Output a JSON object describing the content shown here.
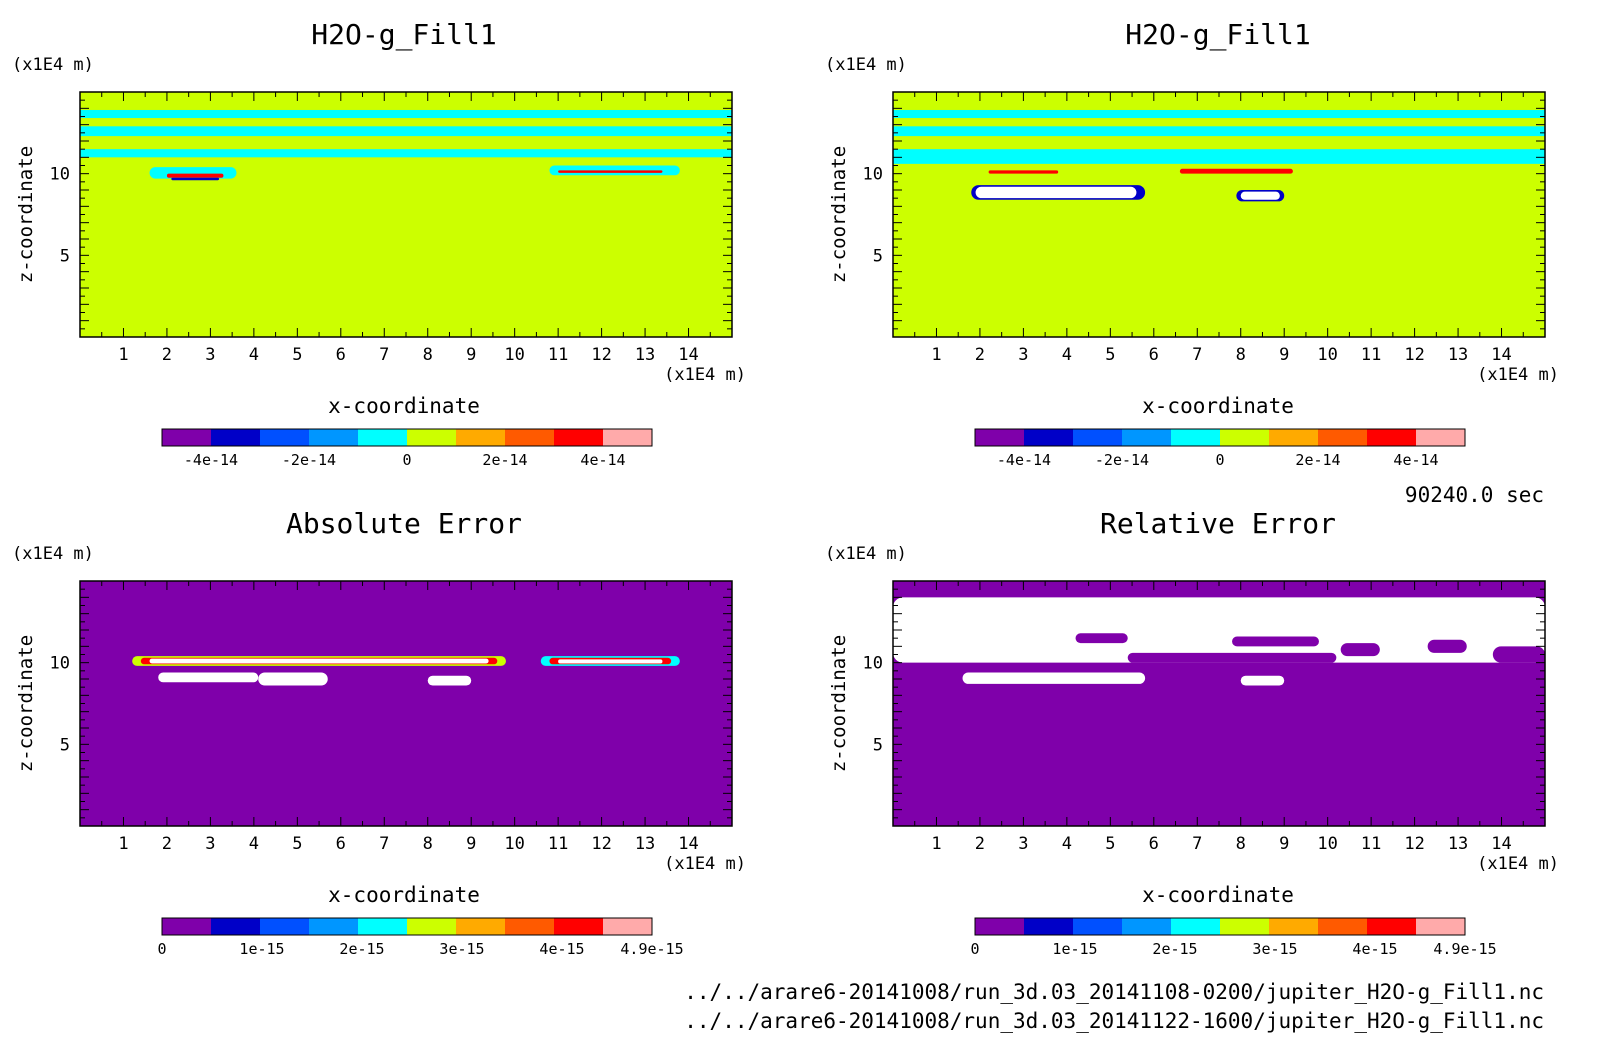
{
  "time_label": "90240.0 sec",
  "file_paths": [
    "../../arare6-20141008/run_3d.03_20141108-0200/jupiter_H2O-g_Fill1.nc",
    "../../arare6-20141008/run_3d.03_20141122-1600/jupiter_H2O-g_Fill1.nc"
  ],
  "colors": {
    "levels": [
      "#7f00aa",
      "#0000c8",
      "#0050ff",
      "#0096ff",
      "#00ffff",
      "#ccff00",
      "#ffaa00",
      "#ff5a00",
      "#ff0000",
      "#ffaaaa"
    ],
    "missing": "#ffffff"
  },
  "chart_data": [
    {
      "type": "heatmap",
      "title": "H2O-g_Fill1",
      "xlabel": "x-coordinate",
      "ylabel": "z-coordinate",
      "x_unit": "(x1E4 m)",
      "y_unit": "(x1E4 m)",
      "xlim": [
        0,
        15
      ],
      "ylim": [
        0,
        15
      ],
      "x_ticks": [
        "1",
        "2",
        "3",
        "4",
        "5",
        "6",
        "7",
        "8",
        "9",
        "10",
        "11",
        "12",
        "13",
        "14"
      ],
      "y_ticks": [
        "5",
        "10"
      ],
      "background_level": 5,
      "features": [
        {
          "kind": "band",
          "z": [
            14.0,
            14.6
          ],
          "level": 5
        },
        {
          "kind": "band",
          "z": [
            13.4,
            13.9
          ],
          "level": 4
        },
        {
          "kind": "band",
          "z": [
            13.0,
            13.4
          ],
          "level": 5
        },
        {
          "kind": "band",
          "z": [
            12.3,
            12.9
          ],
          "level": 4
        },
        {
          "kind": "band",
          "z": [
            11.6,
            12.2
          ],
          "level": 5
        },
        {
          "kind": "band",
          "z": [
            11.0,
            11.5
          ],
          "level": 4
        },
        {
          "kind": "patch",
          "x": [
            1.6,
            3.6
          ],
          "z": [
            9.7,
            10.4
          ],
          "level": 4
        },
        {
          "kind": "patch",
          "x": [
            2.0,
            3.3
          ],
          "z": [
            9.75,
            10.0
          ],
          "level": 8
        },
        {
          "kind": "patch",
          "x": [
            2.1,
            3.2
          ],
          "z": [
            9.6,
            9.75
          ],
          "level": 1
        },
        {
          "kind": "patch",
          "x": [
            10.8,
            13.8
          ],
          "z": [
            9.9,
            10.5
          ],
          "level": 4
        },
        {
          "kind": "patch",
          "x": [
            11.0,
            13.4
          ],
          "z": [
            10.05,
            10.2
          ],
          "level": 8
        }
      ],
      "colorbar": {
        "ticks": [
          "-4e-14",
          "-2e-14",
          "0",
          "2e-14",
          "4e-14"
        ],
        "range": [
          -5e-14,
          5e-14
        ]
      }
    },
    {
      "type": "heatmap",
      "title": "H2O-g_Fill1",
      "xlabel": "x-coordinate",
      "ylabel": "z-coordinate",
      "x_unit": "(x1E4 m)",
      "y_unit": "(x1E4 m)",
      "xlim": [
        0,
        15
      ],
      "ylim": [
        0,
        15
      ],
      "x_ticks": [
        "1",
        "2",
        "3",
        "4",
        "5",
        "6",
        "7",
        "8",
        "9",
        "10",
        "11",
        "12",
        "13",
        "14"
      ],
      "y_ticks": [
        "5",
        "10"
      ],
      "background_level": 5,
      "features": [
        {
          "kind": "band",
          "z": [
            14.0,
            14.6
          ],
          "level": 5
        },
        {
          "kind": "band",
          "z": [
            13.4,
            13.9
          ],
          "level": 4
        },
        {
          "kind": "band",
          "z": [
            13.0,
            13.4
          ],
          "level": 5
        },
        {
          "kind": "band",
          "z": [
            12.3,
            12.9
          ],
          "level": 4
        },
        {
          "kind": "band",
          "z": [
            11.6,
            12.2
          ],
          "level": 5
        },
        {
          "kind": "band",
          "z": [
            10.6,
            11.5
          ],
          "level": 4
        },
        {
          "kind": "patch",
          "x": [
            2.2,
            3.8
          ],
          "z": [
            10.0,
            10.2
          ],
          "level": 8
        },
        {
          "kind": "patch",
          "x": [
            6.6,
            9.2
          ],
          "z": [
            10.0,
            10.3
          ],
          "level": 8
        },
        {
          "kind": "patch",
          "x": [
            1.8,
            5.8
          ],
          "z": [
            8.4,
            9.3
          ],
          "level": 1
        },
        {
          "kind": "patch",
          "x": [
            1.9,
            5.6
          ],
          "z": [
            8.5,
            9.2
          ],
          "level": "missing"
        },
        {
          "kind": "patch",
          "x": [
            7.9,
            9.0
          ],
          "z": [
            8.3,
            9.0
          ],
          "level": 1
        },
        {
          "kind": "patch",
          "x": [
            8.0,
            8.9
          ],
          "z": [
            8.4,
            8.9
          ],
          "level": "missing"
        }
      ],
      "colorbar": {
        "ticks": [
          "-4e-14",
          "-2e-14",
          "0",
          "2e-14",
          "4e-14"
        ],
        "range": [
          -5e-14,
          5e-14
        ]
      }
    },
    {
      "type": "heatmap",
      "title": "Absolute Error",
      "xlabel": "x-coordinate",
      "ylabel": "z-coordinate",
      "x_unit": "(x1E4 m)",
      "y_unit": "(x1E4 m)",
      "xlim": [
        0,
        15
      ],
      "ylim": [
        0,
        15
      ],
      "x_ticks": [
        "1",
        "2",
        "3",
        "4",
        "5",
        "6",
        "7",
        "8",
        "9",
        "10",
        "11",
        "12",
        "13",
        "14"
      ],
      "y_ticks": [
        "5",
        "10"
      ],
      "background_level": 0,
      "features": [
        {
          "kind": "patch",
          "x": [
            1.2,
            9.8
          ],
          "z": [
            9.8,
            10.4
          ],
          "level": 5
        },
        {
          "kind": "patch",
          "x": [
            1.4,
            9.6
          ],
          "z": [
            9.9,
            10.3
          ],
          "level": 8
        },
        {
          "kind": "patch",
          "x": [
            1.6,
            9.4
          ],
          "z": [
            9.95,
            10.25
          ],
          "level": "missing"
        },
        {
          "kind": "patch",
          "x": [
            10.6,
            13.8
          ],
          "z": [
            9.8,
            10.4
          ],
          "level": 4
        },
        {
          "kind": "patch",
          "x": [
            10.8,
            13.6
          ],
          "z": [
            9.9,
            10.3
          ],
          "level": 8
        },
        {
          "kind": "patch",
          "x": [
            11.0,
            13.4
          ],
          "z": [
            9.95,
            10.2
          ],
          "level": "missing"
        },
        {
          "kind": "patch",
          "x": [
            1.8,
            4.1
          ],
          "z": [
            8.8,
            9.4
          ],
          "level": "missing"
        },
        {
          "kind": "patch",
          "x": [
            4.1,
            5.7
          ],
          "z": [
            8.6,
            9.4
          ],
          "level": "missing"
        },
        {
          "kind": "patch",
          "x": [
            8.0,
            9.0
          ],
          "z": [
            8.6,
            9.2
          ],
          "level": "missing"
        }
      ],
      "colorbar": {
        "ticks": [
          "0",
          "1e-15",
          "2e-15",
          "3e-15",
          "4e-15",
          "4.9e-15"
        ],
        "range": [
          0,
          4.9e-15
        ]
      }
    },
    {
      "type": "heatmap",
      "title": "Relative Error",
      "xlabel": "x-coordinate",
      "ylabel": "z-coordinate",
      "x_unit": "(x1E4 m)",
      "y_unit": "(x1E4 m)",
      "xlim": [
        0,
        15
      ],
      "ylim": [
        0,
        15
      ],
      "x_ticks": [
        "1",
        "2",
        "3",
        "4",
        "5",
        "6",
        "7",
        "8",
        "9",
        "10",
        "11",
        "12",
        "13",
        "14"
      ],
      "y_ticks": [
        "5",
        "10"
      ],
      "background_level": 0,
      "features": [
        {
          "kind": "patch",
          "x": [
            0,
            15
          ],
          "z": [
            10.0,
            14.0
          ],
          "level": "missing"
        },
        {
          "kind": "patch",
          "x": [
            4.2,
            5.4
          ],
          "z": [
            11.2,
            11.8
          ],
          "level": 0
        },
        {
          "kind": "patch",
          "x": [
            7.8,
            9.8
          ],
          "z": [
            11.0,
            11.6
          ],
          "level": 0
        },
        {
          "kind": "patch",
          "x": [
            10.3,
            11.2
          ],
          "z": [
            10.4,
            11.2
          ],
          "level": 0
        },
        {
          "kind": "patch",
          "x": [
            12.3,
            13.2
          ],
          "z": [
            10.6,
            11.4
          ],
          "level": 0
        },
        {
          "kind": "patch",
          "x": [
            13.8,
            15
          ],
          "z": [
            10.0,
            11.0
          ],
          "level": 0
        },
        {
          "kind": "patch",
          "x": [
            5.4,
            10.2
          ],
          "z": [
            10.0,
            10.6
          ],
          "level": 0
        },
        {
          "kind": "patch",
          "x": [
            1.6,
            5.8
          ],
          "z": [
            8.7,
            9.4
          ],
          "level": "missing"
        },
        {
          "kind": "patch",
          "x": [
            8.0,
            9.0
          ],
          "z": [
            8.6,
            9.2
          ],
          "level": "missing"
        }
      ],
      "colorbar": {
        "ticks": [
          "0",
          "1e-15",
          "2e-15",
          "3e-15",
          "4e-15",
          "4.9e-15"
        ],
        "range": [
          0,
          4.9e-15
        ]
      }
    }
  ]
}
